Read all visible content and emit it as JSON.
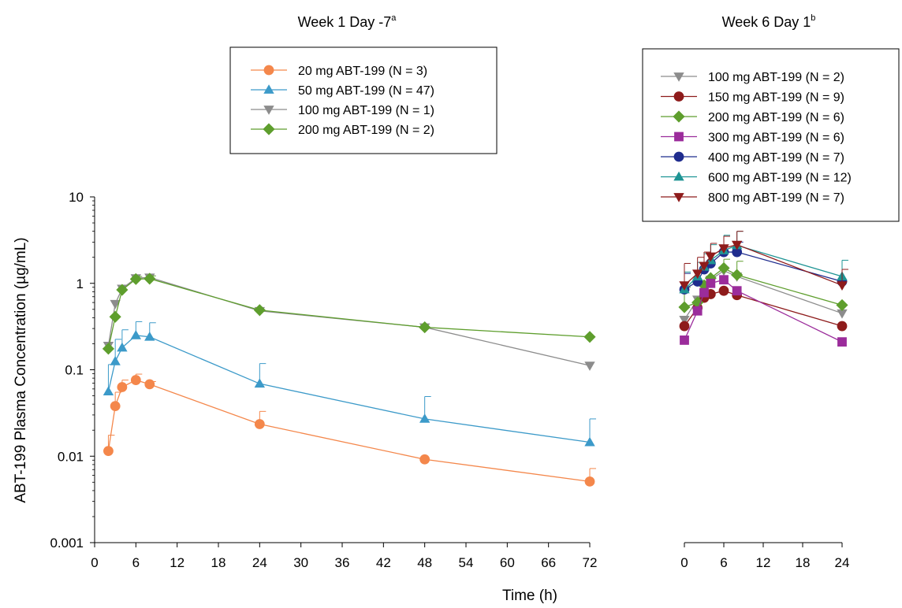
{
  "chart_data": [
    {
      "type": "line",
      "title": "Week 1 Day -7",
      "title_sup": "a",
      "xlabel": "Time (h)",
      "ylabel": "ABT-199 Plasma Concentration (µg/mL)",
      "yscale": "log",
      "xlim": [
        0,
        72
      ],
      "ylim": [
        0.001,
        10
      ],
      "xticks": [
        0,
        6,
        12,
        18,
        24,
        30,
        36,
        42,
        48,
        54,
        60,
        66,
        72
      ],
      "yticks": [
        0.001,
        0.01,
        0.1,
        1,
        10
      ],
      "ytick_labels": [
        "0.001",
        "0.01",
        "0.1",
        "1",
        "10"
      ],
      "legend_position": "top-center",
      "grid": false,
      "series": [
        {
          "name": "20 mg ABT-199 (N = 3)",
          "color": "#F4874B",
          "marker": "circle",
          "x": [
            2,
            3,
            4,
            6,
            8,
            24,
            48,
            72
          ],
          "y": [
            0.0115,
            0.038,
            0.063,
            0.076,
            0.068,
            0.0235,
            0.0092,
            0.0051
          ],
          "err": [
            0.0175,
            0.055,
            0.076,
            0.089,
            0.073,
            0.033,
            null,
            0.0072
          ]
        },
        {
          "name": "50 mg ABT-199  (N = 47)",
          "color": "#3C9AC9",
          "marker": "triangle-up",
          "x": [
            2,
            3,
            4,
            6,
            8,
            24,
            48,
            72
          ],
          "y": [
            0.056,
            0.125,
            0.18,
            0.25,
            0.24,
            0.069,
            0.027,
            0.0145
          ],
          "err": [
            0.115,
            0.225,
            0.29,
            0.36,
            0.35,
            0.118,
            0.049,
            0.027
          ]
        },
        {
          "name": "100 mg ABT-199  (N = 1)",
          "color": "#8C8C8C",
          "marker": "triangle-down",
          "x": [
            2,
            3,
            4,
            6,
            8,
            24,
            48,
            72
          ],
          "y": [
            0.19,
            0.58,
            0.87,
            1.15,
            1.17,
            0.48,
            0.31,
            0.112
          ],
          "err": [
            null,
            null,
            null,
            null,
            null,
            null,
            null,
            null
          ]
        },
        {
          "name": "200 mg ABT-199  (N = 2)",
          "color": "#5E9E2D",
          "marker": "diamond",
          "x": [
            2,
            3,
            4,
            6,
            8,
            24,
            48,
            72
          ],
          "y": [
            0.175,
            0.41,
            0.84,
            1.12,
            1.13,
            0.49,
            0.31,
            0.24
          ],
          "err": [
            null,
            null,
            null,
            1.2,
            1.22,
            null,
            null,
            null
          ]
        }
      ]
    },
    {
      "type": "line",
      "title": "Week 6 Day 1",
      "title_sup": "b",
      "yscale": "log",
      "xlim": [
        0,
        24
      ],
      "ylim": [
        0.001,
        10
      ],
      "xticks": [
        0,
        6,
        12,
        18,
        24
      ],
      "legend_position": "top-right",
      "grid": false,
      "series": [
        {
          "name": "100 mg ABT-199  (N = 2)",
          "color": "#8C8C8C",
          "marker": "triangle-down",
          "x": [
            0,
            2,
            3,
            4,
            6,
            8,
            24
          ],
          "y": [
            0.38,
            0.65,
            0.9,
            1.1,
            1.4,
            1.2,
            0.45
          ],
          "err": [
            null,
            null,
            null,
            null,
            null,
            null,
            null
          ]
        },
        {
          "name": "150 mg ABT-199  (N = 9)",
          "color": "#8E1B1B",
          "marker": "circle",
          "x": [
            0,
            2,
            3,
            4,
            6,
            8,
            24
          ],
          "y": [
            0.32,
            0.52,
            0.68,
            0.75,
            0.82,
            0.73,
            0.32
          ],
          "err": [
            null,
            null,
            null,
            null,
            null,
            null,
            null
          ]
        },
        {
          "name": "200 mg ABT-199  (N = 6)",
          "color": "#5E9E2D",
          "marker": "diamond",
          "x": [
            0,
            2,
            3,
            4,
            6,
            8,
            24
          ],
          "y": [
            0.53,
            0.6,
            0.95,
            1.15,
            1.5,
            1.25,
            0.56
          ],
          "err": [
            0.9,
            null,
            null,
            null,
            1.9,
            1.8,
            null
          ]
        },
        {
          "name": "300 mg ABT-199  (N = 6)",
          "color": "#9B2C9B",
          "marker": "square",
          "x": [
            0,
            2,
            3,
            4,
            6,
            8,
            24
          ],
          "y": [
            0.22,
            0.48,
            0.78,
            1.0,
            1.1,
            0.82,
            0.21
          ],
          "err": [
            null,
            null,
            null,
            null,
            null,
            null,
            null
          ]
        },
        {
          "name": "400 mg ABT-199  (N = 7)",
          "color": "#1F2C8E",
          "marker": "circle",
          "x": [
            0,
            2,
            3,
            4,
            6,
            8,
            24
          ],
          "y": [
            0.85,
            1.05,
            1.45,
            1.7,
            2.3,
            2.3,
            1.05
          ],
          "err": [
            1.3,
            null,
            null,
            null,
            null,
            3.0,
            null
          ]
        },
        {
          "name": "600 mg ABT-199  (N = 12)",
          "color": "#1E9494",
          "marker": "triangle-up",
          "x": [
            0,
            2,
            3,
            4,
            6,
            8,
            24
          ],
          "y": [
            0.85,
            1.2,
            1.55,
            1.85,
            2.4,
            2.75,
            1.2
          ],
          "err": [
            1.35,
            1.75,
            2.2,
            2.8,
            3.6,
            4.0,
            1.85
          ]
        },
        {
          "name": "800 mg ABT-199  (N = 7)",
          "color": "#8E1B1B",
          "marker": "triangle-down",
          "x": [
            0,
            2,
            3,
            4,
            6,
            8,
            24
          ],
          "y": [
            0.95,
            1.3,
            1.6,
            2.05,
            2.55,
            2.8,
            0.95
          ],
          "err": [
            1.7,
            2.0,
            2.3,
            2.9,
            3.5,
            4.0,
            1.45
          ]
        }
      ]
    }
  ]
}
